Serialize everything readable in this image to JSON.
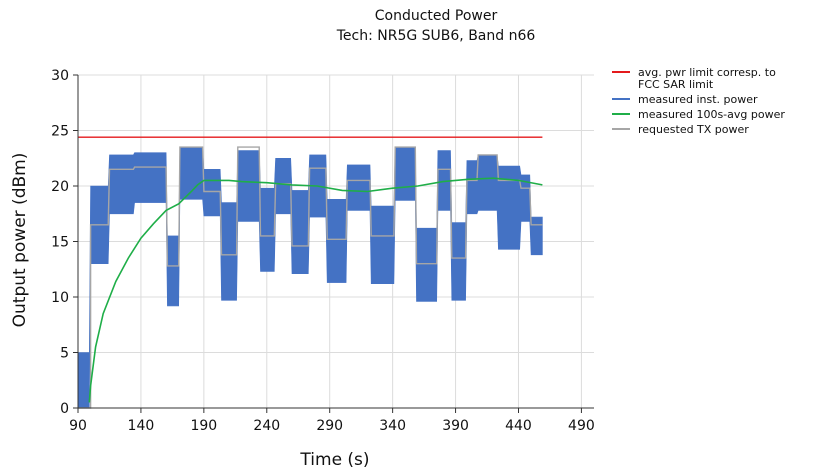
{
  "chart_data": {
    "type": "line",
    "title": "Conducted Power",
    "subtitle": "Tech: NR5G SUB6, Band n66",
    "xlabel": "Time (s)",
    "ylabel": "Output power (dBm)",
    "xlim": [
      90,
      500
    ],
    "ylim": [
      0,
      30
    ],
    "xticks": [
      "90",
      "140",
      "190",
      "240",
      "290",
      "340",
      "390",
      "440",
      "490"
    ],
    "yticks": [
      "0",
      "5",
      "10",
      "15",
      "20",
      "25",
      "30"
    ],
    "grid": true,
    "legend_position": "right",
    "series": [
      {
        "name": "avg. pwr limit corresp. to FCC SAR limit",
        "color": "#e41a1c",
        "x": [
          90,
          459
        ],
        "y": [
          24.4,
          24.4
        ]
      },
      {
        "name": "measured inst. power",
        "color": "#4472c4",
        "style": "band",
        "x": [
          90,
          99,
          100,
          114,
          115,
          134,
          135,
          160,
          161,
          170,
          171,
          189,
          190,
          203,
          204,
          216,
          217,
          234,
          235,
          246,
          247,
          259,
          260,
          273,
          274,
          287,
          288,
          303,
          304,
          322,
          323,
          341,
          342,
          358,
          359,
          375,
          376,
          386,
          387,
          398,
          399,
          407,
          408,
          423,
          424,
          441,
          442,
          449,
          450,
          459
        ],
        "low": [
          0,
          0,
          13,
          13,
          17.5,
          17.5,
          18.5,
          18.5,
          9.2,
          9.2,
          18.8,
          18.8,
          17.3,
          17.3,
          9.7,
          9.7,
          16.8,
          16.8,
          12.3,
          12.3,
          17.5,
          17.5,
          12.1,
          12.1,
          17.2,
          17.2,
          11.3,
          11.3,
          17.8,
          17.8,
          11.2,
          11.2,
          18.7,
          18.7,
          9.6,
          9.6,
          17.8,
          17.8,
          9.7,
          9.7,
          17.5,
          17.5,
          17.8,
          17.8,
          14.3,
          14.3,
          16.8,
          16.8,
          13.8,
          13.8
        ],
        "high": [
          5,
          5,
          20,
          20,
          22.8,
          22.8,
          23,
          23,
          15.5,
          15.5,
          23.5,
          23.5,
          21.5,
          21.5,
          18.5,
          18.5,
          23.2,
          23.2,
          19.8,
          19.8,
          22.5,
          22.5,
          19.6,
          19.6,
          22.8,
          22.8,
          18.8,
          18.8,
          21.9,
          21.9,
          18.2,
          18.2,
          23.5,
          23.5,
          16.2,
          16.2,
          23.2,
          23.2,
          16.7,
          16.7,
          22.3,
          22.3,
          22.8,
          22.8,
          21.8,
          21.8,
          21,
          21,
          17.2,
          17.2
        ]
      },
      {
        "name": "measured 100s-avg power",
        "color": "#1fae48",
        "x": [
          99,
          100,
          104,
          110,
          120,
          130,
          140,
          150,
          160,
          170,
          180,
          185,
          190,
          200,
          210,
          220,
          240,
          260,
          280,
          300,
          320,
          340,
          360,
          380,
          400,
          420,
          440,
          459
        ],
        "y": [
          0.5,
          2,
          5.5,
          8.5,
          11.4,
          13.5,
          15.3,
          16.6,
          17.8,
          18.4,
          19.5,
          20.1,
          20.5,
          20.5,
          20.5,
          20.4,
          20.3,
          20.1,
          20,
          19.6,
          19.5,
          19.8,
          20,
          20.4,
          20.6,
          20.7,
          20.5,
          20.1
        ]
      },
      {
        "name": "requested TX power",
        "color": "#a6a6a6",
        "x": [
          90,
          100,
          100,
          114,
          115,
          134,
          135,
          160,
          161,
          170,
          171,
          189,
          190,
          203,
          204,
          216,
          217,
          234,
          235,
          246,
          247,
          259,
          260,
          273,
          274,
          287,
          288,
          303,
          304,
          322,
          323,
          341,
          342,
          358,
          359,
          375,
          376,
          386,
          387,
          398,
          399,
          407,
          408,
          423,
          424,
          441,
          442,
          449,
          450,
          459
        ],
        "y": [
          0,
          0,
          16.5,
          16.5,
          21.5,
          21.5,
          21.7,
          21.7,
          12.8,
          12.8,
          23.5,
          23.5,
          19.5,
          19.5,
          13.8,
          13.8,
          23.5,
          23.5,
          15.5,
          15.5,
          20.2,
          20.2,
          14.6,
          14.6,
          21.6,
          21.6,
          15.2,
          15.2,
          20.5,
          20.5,
          15.5,
          15.5,
          23.5,
          23.5,
          13,
          13,
          21.5,
          21.5,
          13.5,
          13.5,
          20.5,
          20.5,
          22.8,
          22.8,
          20.5,
          20.5,
          19.8,
          19.8,
          16.5,
          16.5
        ]
      }
    ]
  }
}
